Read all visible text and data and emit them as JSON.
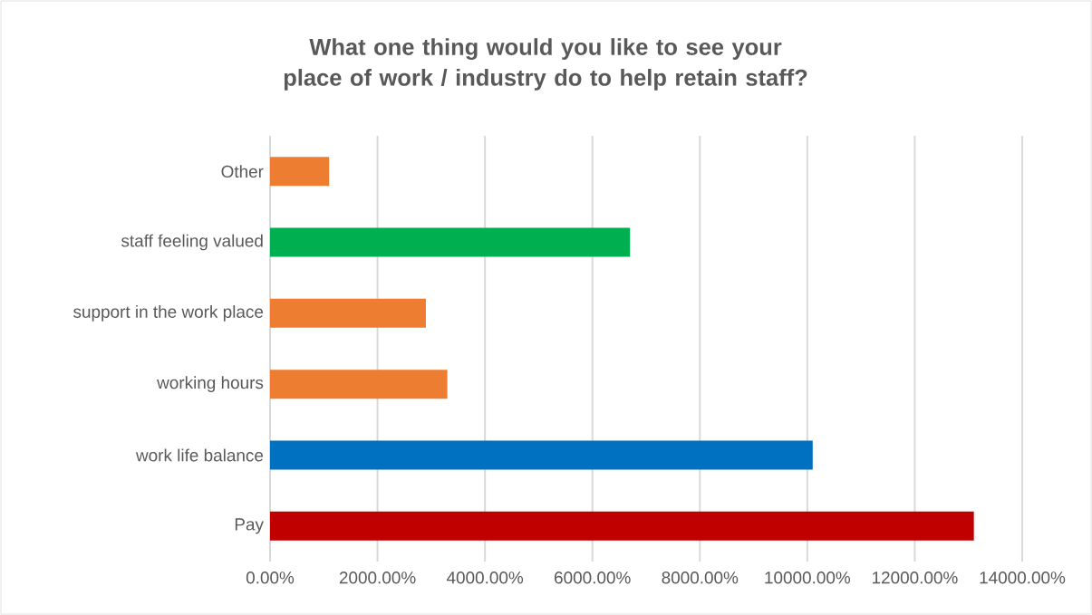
{
  "chart_data": {
    "type": "bar",
    "orientation": "horizontal",
    "title": "What one thing would you like to see your place of work / industry do to help retain staff?",
    "categories": [
      "Other",
      "staff feeling valued",
      "support in the work place",
      "working hours",
      "work life balance",
      "Pay"
    ],
    "values": [
      1100,
      6700,
      2900,
      3300,
      10100,
      13100
    ],
    "colors": [
      "#ed7d31",
      "#00b050",
      "#ed7d31",
      "#ed7d31",
      "#0070c0",
      "#c00000"
    ],
    "xlim": [
      0,
      14000
    ],
    "xticks": [
      {
        "value": 0,
        "label": "0.00%"
      },
      {
        "value": 2000,
        "label": "2000.00%"
      },
      {
        "value": 4000,
        "label": "4000.00%"
      },
      {
        "value": 6000,
        "label": "6000.00%"
      },
      {
        "value": 8000,
        "label": "8000.00%"
      },
      {
        "value": 10000,
        "label": "10000.00%"
      },
      {
        "value": 12000,
        "label": "12000.00%"
      },
      {
        "value": 14000,
        "label": "14000.00%"
      }
    ],
    "grid": "x"
  }
}
